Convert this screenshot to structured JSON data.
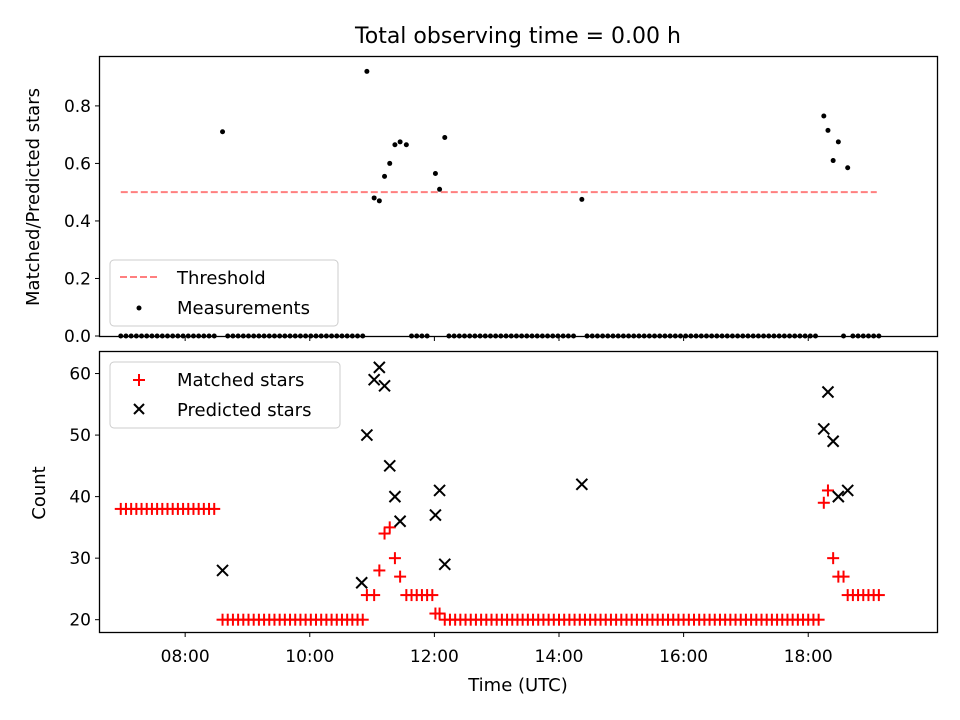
{
  "figure": {
    "title": "Total observing time = 0.00 h"
  },
  "chart_data": [
    {
      "type": "scatter",
      "panel": "top",
      "ylabel": "Matched/Predicted stars",
      "ylim": [
        0,
        0.97
      ],
      "yticks": [
        0.0,
        0.2,
        0.4,
        0.6,
        0.8
      ],
      "ytick_labels": [
        "0.0",
        "0.2",
        "0.4",
        "0.6",
        "0.8"
      ],
      "xlim": [
        "06:38",
        "20:04"
      ],
      "legend_placement": "lower-left",
      "series": [
        {
          "name": "Threshold",
          "kind": "dashed-line",
          "color": "#ff7f7f",
          "x": [
            "06:58",
            "19:06"
          ],
          "y": [
            0.5,
            0.5
          ]
        },
        {
          "name": "Measurements",
          "kind": "points",
          "color": "#000000",
          "points": [
            [
              "08:36",
              0.71
            ],
            [
              "10:55",
              0.92
            ],
            [
              "11:02",
              0.48
            ],
            [
              "11:07",
              0.47
            ],
            [
              "11:12",
              0.555
            ],
            [
              "11:17",
              0.6
            ],
            [
              "11:22",
              0.665
            ],
            [
              "11:27",
              0.675
            ],
            [
              "11:33",
              0.665
            ],
            [
              "12:01",
              0.565
            ],
            [
              "12:05",
              0.51
            ],
            [
              "12:10",
              0.69
            ],
            [
              "14:22",
              0.475
            ],
            [
              "18:15",
              0.765
            ],
            [
              "18:19",
              0.715
            ],
            [
              "18:24",
              0.61
            ],
            [
              "18:29",
              0.675
            ],
            [
              "18:38",
              0.585
            ]
          ],
          "zero_runs": [
            {
              "start": "06:58",
              "end": "08:32",
              "step_min": 5,
              "y": 0.0
            },
            {
              "start": "08:41",
              "end": "10:51",
              "step_min": 5,
              "y": 0.0
            },
            {
              "start": "11:38",
              "end": "11:56",
              "step_min": 5,
              "y": 0.0
            },
            {
              "start": "12:14",
              "end": "14:18",
              "step_min": 5,
              "y": 0.0
            },
            {
              "start": "14:27",
              "end": "18:10",
              "step_min": 5,
              "y": 0.0
            },
            {
              "start": "18:34",
              "end": "18:34",
              "step_min": 5,
              "y": 0.0
            },
            {
              "start": "18:43",
              "end": "19:09",
              "step_min": 5,
              "y": 0.0
            }
          ]
        }
      ]
    },
    {
      "type": "scatter",
      "panel": "bottom",
      "xlabel": "Time (UTC)",
      "ylabel": "Count",
      "ylim": [
        18,
        63.5
      ],
      "yticks": [
        20,
        30,
        40,
        50,
        60
      ],
      "ytick_labels": [
        "20",
        "30",
        "40",
        "50",
        "60"
      ],
      "xlim": [
        "06:38",
        "20:04"
      ],
      "xticks": [
        "08:00",
        "10:00",
        "12:00",
        "14:00",
        "16:00",
        "18:00"
      ],
      "xtick_labels": [
        "08:00",
        "10:00",
        "12:00",
        "14:00",
        "16:00",
        "18:00"
      ],
      "legend_placement": "top-left",
      "series": [
        {
          "name": "Matched stars",
          "marker": "+",
          "color": "#ff0000",
          "points": [
            [
              "10:55",
              24
            ],
            [
              "11:02",
              24
            ],
            [
              "11:07",
              28
            ],
            [
              "11:12",
              34
            ],
            [
              "11:17",
              35
            ],
            [
              "11:22",
              30
            ],
            [
              "11:27",
              27
            ],
            [
              "11:33",
              24
            ],
            [
              "11:38",
              24
            ],
            [
              "11:43",
              24
            ],
            [
              "11:48",
              24
            ],
            [
              "11:53",
              24
            ],
            [
              "11:58",
              24
            ],
            [
              "12:01",
              21
            ],
            [
              "12:05",
              21
            ],
            [
              "18:15",
              39
            ],
            [
              "18:19",
              41
            ],
            [
              "18:24",
              30
            ],
            [
              "18:29",
              27
            ],
            [
              "18:34",
              27
            ]
          ],
          "runs": [
            {
              "start": "06:58",
              "end": "08:32",
              "step_min": 5,
              "y": 38
            },
            {
              "start": "08:36",
              "end": "10:51",
              "step_min": 5,
              "y": 20
            },
            {
              "start": "12:10",
              "end": "18:10",
              "step_min": 5,
              "y": 20
            },
            {
              "start": "18:38",
              "end": "19:09",
              "step_min": 5,
              "y": 24
            }
          ]
        },
        {
          "name": "Predicted stars",
          "marker": "x",
          "color": "#000000",
          "points": [
            [
              "08:36",
              28
            ],
            [
              "10:50",
              26
            ],
            [
              "10:55",
              50
            ],
            [
              "11:02",
              59
            ],
            [
              "11:07",
              61
            ],
            [
              "11:12",
              58
            ],
            [
              "11:17",
              45
            ],
            [
              "11:22",
              40
            ],
            [
              "11:27",
              36
            ],
            [
              "12:01",
              37
            ],
            [
              "12:05",
              41
            ],
            [
              "12:10",
              29
            ],
            [
              "14:22",
              42
            ],
            [
              "18:15",
              51
            ],
            [
              "18:19",
              57
            ],
            [
              "18:24",
              49
            ],
            [
              "18:29",
              40
            ],
            [
              "18:38",
              41
            ]
          ]
        }
      ]
    }
  ]
}
